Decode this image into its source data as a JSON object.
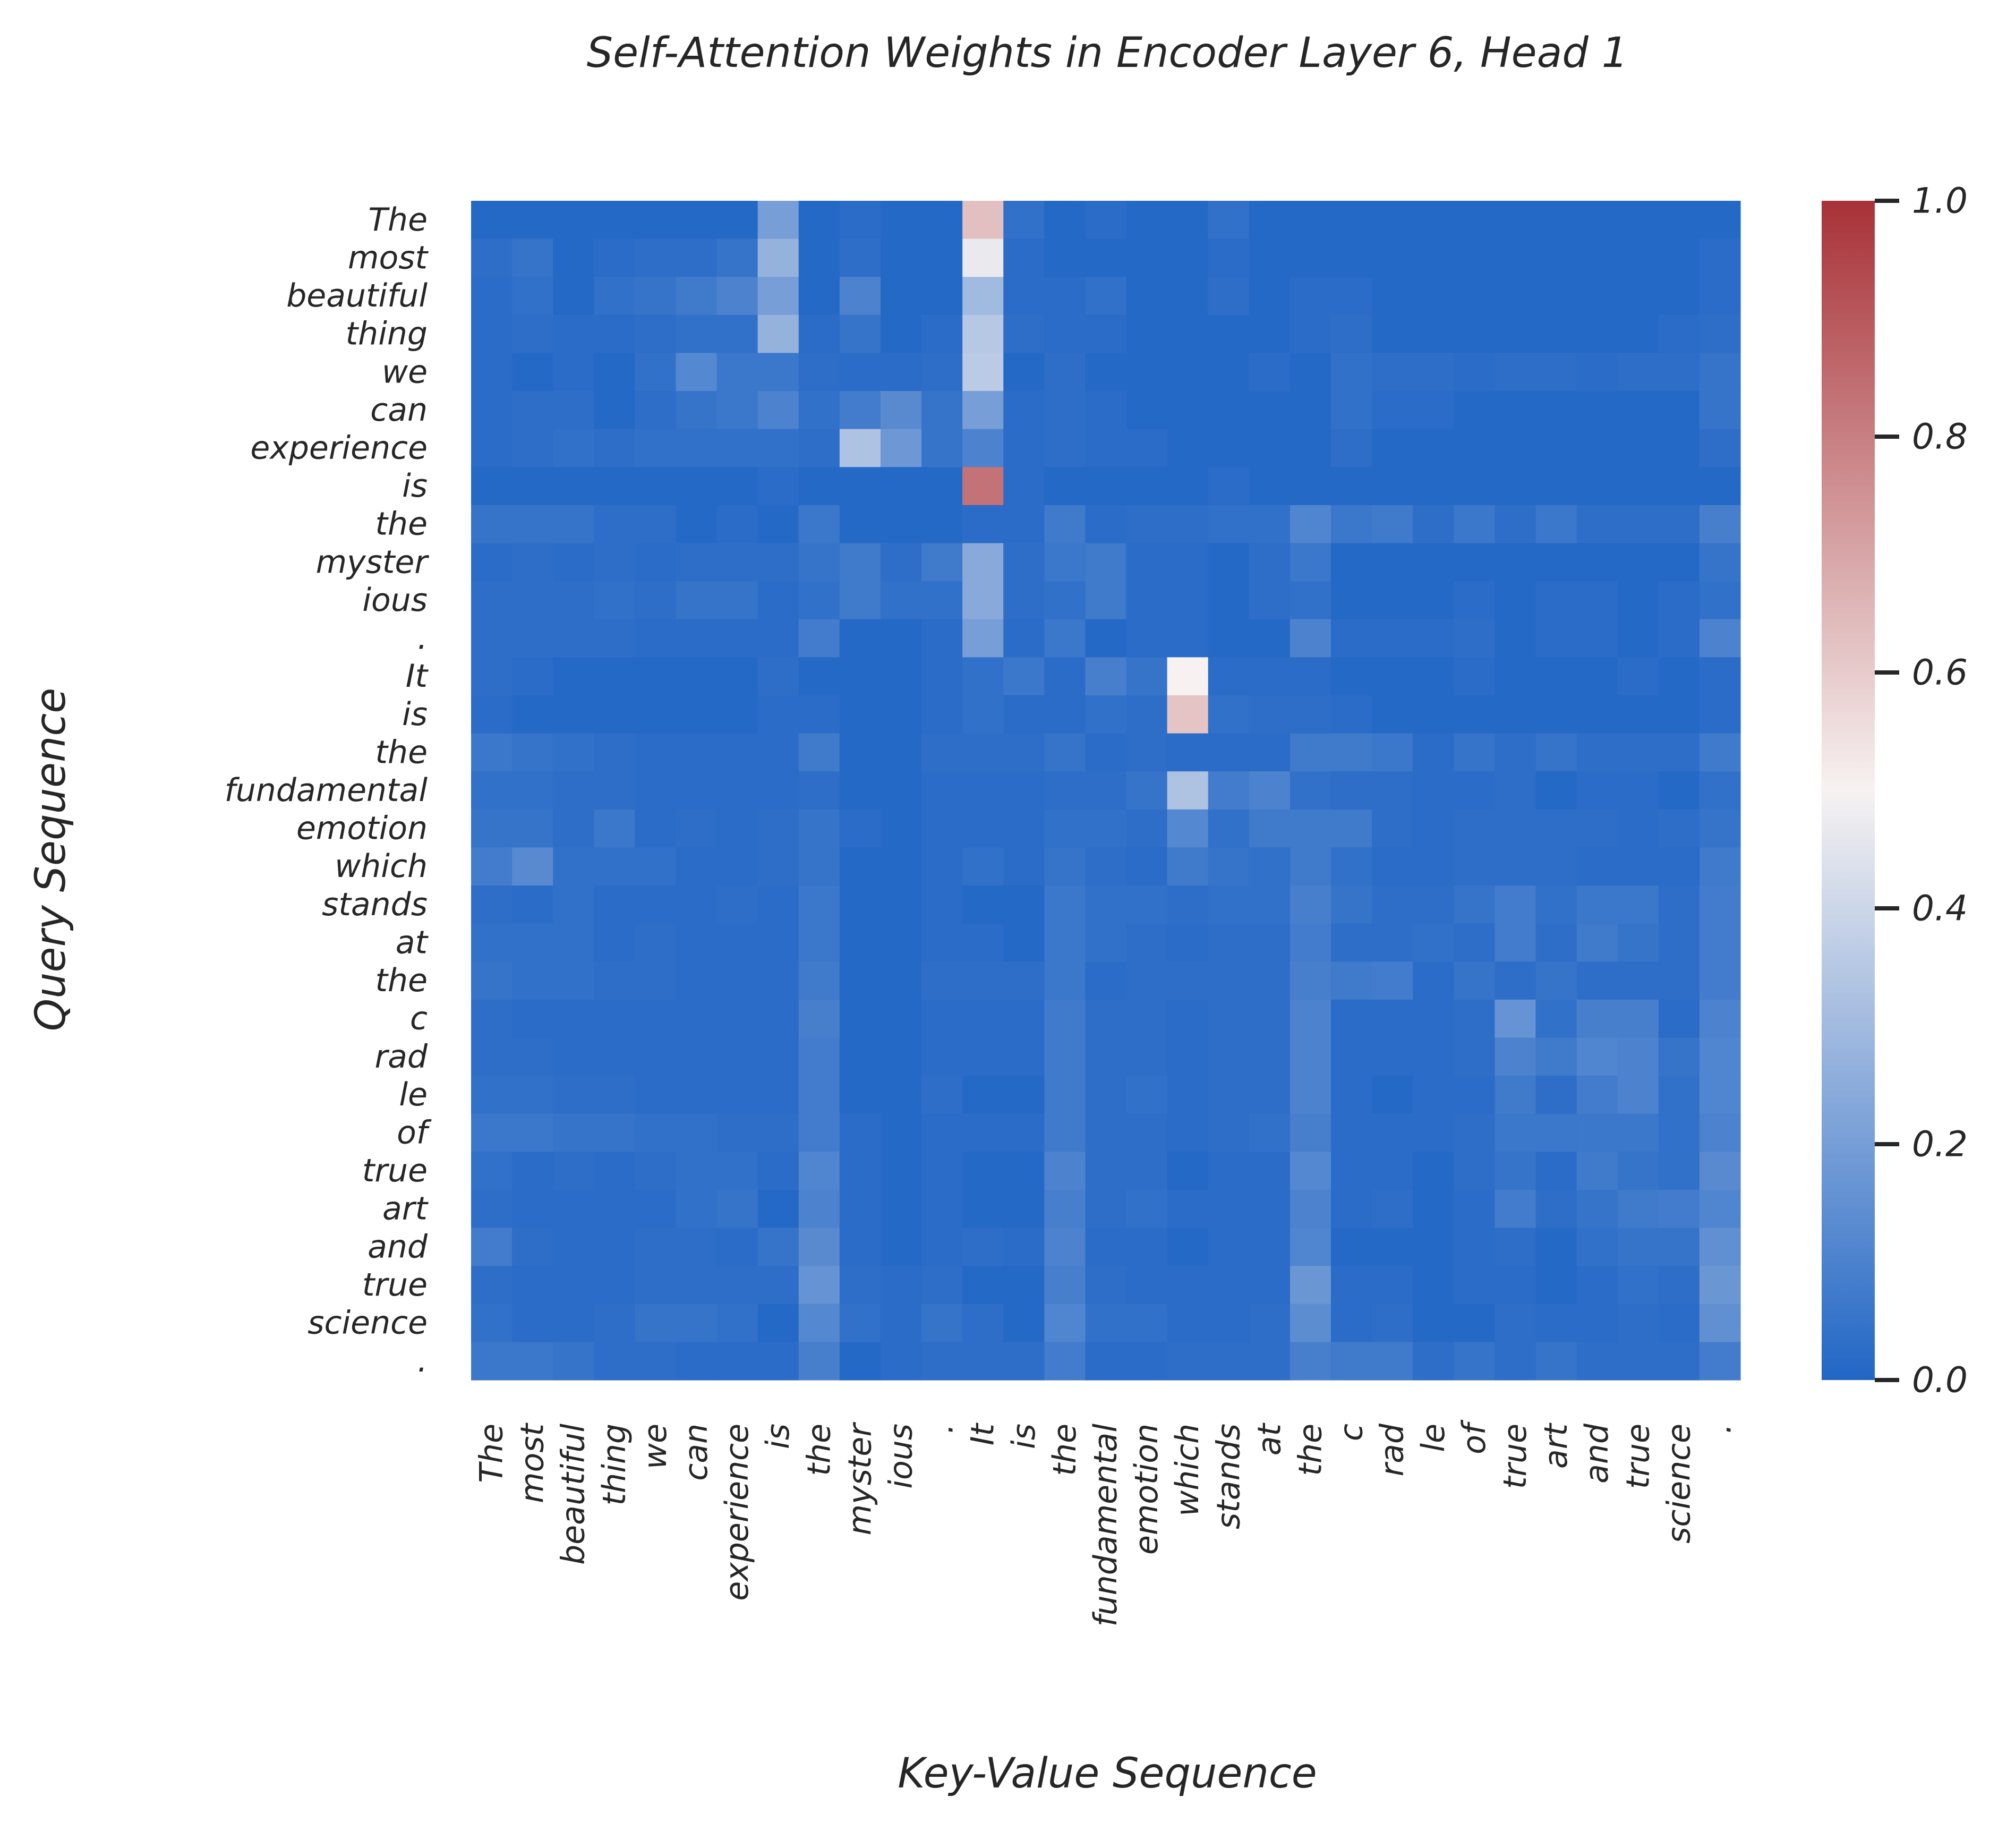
{
  "chart_data": {
    "type": "heatmap",
    "title": "Self-Attention Weights in Encoder Layer 6, Head 1",
    "xlabel": "Key-Value Sequence",
    "ylabel": "Query Sequence",
    "tokens": [
      "The",
      "most",
      "beautiful",
      "thing",
      "we",
      "can",
      "experience",
      "is",
      "the",
      "myster",
      "ious",
      ".",
      "It",
      "is",
      "the",
      "fundamental",
      "emotion",
      "which",
      "stands",
      "at",
      "the",
      "c",
      "rad",
      "le",
      "of",
      "true",
      "art",
      "and",
      "true",
      "science",
      "."
    ],
    "colorbar": {
      "min": 0.0,
      "max": 1.0,
      "ticks": [
        "0.0",
        "0.2",
        "0.4",
        "0.6",
        "0.8",
        "1.0"
      ],
      "colormap": "blue-white-red diverging",
      "colors": [
        "#2166c5",
        "#f7f2f1",
        "#a83238"
      ]
    },
    "values": [
      [
        0.01,
        0.01,
        0.01,
        0.01,
        0.01,
        0.01,
        0.01,
        0.2,
        0.01,
        0.02,
        0.01,
        0.01,
        0.63,
        0.04,
        0.01,
        0.02,
        0.01,
        0.01,
        0.04,
        0.01,
        0.01,
        0.01,
        0.01,
        0.01,
        0.01,
        0.01,
        0.01,
        0.01,
        0.01,
        0.01,
        0.01
      ],
      [
        0.03,
        0.05,
        0.01,
        0.02,
        0.03,
        0.03,
        0.05,
        0.27,
        0.01,
        0.03,
        0.01,
        0.01,
        0.47,
        0.02,
        0.01,
        0.01,
        0.01,
        0.01,
        0.02,
        0.01,
        0.01,
        0.01,
        0.01,
        0.01,
        0.01,
        0.01,
        0.01,
        0.01,
        0.01,
        0.01,
        0.02
      ],
      [
        0.02,
        0.04,
        0.01,
        0.04,
        0.05,
        0.07,
        0.1,
        0.2,
        0.01,
        0.1,
        0.01,
        0.01,
        0.3,
        0.02,
        0.02,
        0.04,
        0.01,
        0.01,
        0.03,
        0.01,
        0.02,
        0.02,
        0.01,
        0.01,
        0.01,
        0.01,
        0.01,
        0.01,
        0.01,
        0.01,
        0.02
      ],
      [
        0.02,
        0.03,
        0.02,
        0.02,
        0.03,
        0.04,
        0.04,
        0.27,
        0.02,
        0.05,
        0.01,
        0.02,
        0.35,
        0.03,
        0.02,
        0.02,
        0.01,
        0.01,
        0.01,
        0.01,
        0.02,
        0.03,
        0.01,
        0.01,
        0.01,
        0.01,
        0.01,
        0.01,
        0.01,
        0.02,
        0.03
      ],
      [
        0.02,
        0.01,
        0.02,
        0.01,
        0.04,
        0.12,
        0.06,
        0.06,
        0.03,
        0.02,
        0.02,
        0.03,
        0.36,
        0.01,
        0.03,
        0.01,
        0.01,
        0.01,
        0.01,
        0.02,
        0.01,
        0.04,
        0.03,
        0.03,
        0.02,
        0.03,
        0.03,
        0.02,
        0.03,
        0.03,
        0.05
      ],
      [
        0.02,
        0.03,
        0.03,
        0.01,
        0.03,
        0.05,
        0.06,
        0.1,
        0.04,
        0.08,
        0.13,
        0.05,
        0.2,
        0.02,
        0.03,
        0.02,
        0.01,
        0.01,
        0.01,
        0.01,
        0.01,
        0.04,
        0.02,
        0.02,
        0.01,
        0.01,
        0.01,
        0.01,
        0.01,
        0.01,
        0.05
      ],
      [
        0.02,
        0.03,
        0.04,
        0.03,
        0.04,
        0.04,
        0.04,
        0.04,
        0.03,
        0.33,
        0.18,
        0.05,
        0.1,
        0.02,
        0.03,
        0.02,
        0.02,
        0.01,
        0.01,
        0.01,
        0.01,
        0.03,
        0.01,
        0.01,
        0.01,
        0.01,
        0.01,
        0.01,
        0.01,
        0.01,
        0.03
      ],
      [
        0.01,
        0.01,
        0.01,
        0.01,
        0.01,
        0.01,
        0.01,
        0.02,
        0.01,
        0.01,
        0.01,
        0.01,
        0.83,
        0.02,
        0.01,
        0.01,
        0.01,
        0.01,
        0.02,
        0.01,
        0.01,
        0.01,
        0.01,
        0.01,
        0.01,
        0.01,
        0.01,
        0.01,
        0.01,
        0.01,
        0.01
      ],
      [
        0.05,
        0.05,
        0.05,
        0.03,
        0.03,
        0.01,
        0.02,
        0.01,
        0.06,
        0.01,
        0.01,
        0.01,
        0.02,
        0.02,
        0.07,
        0.02,
        0.03,
        0.03,
        0.04,
        0.04,
        0.11,
        0.06,
        0.07,
        0.03,
        0.06,
        0.03,
        0.06,
        0.03,
        0.03,
        0.03,
        0.09
      ],
      [
        0.02,
        0.03,
        0.02,
        0.03,
        0.02,
        0.03,
        0.03,
        0.03,
        0.05,
        0.07,
        0.03,
        0.07,
        0.24,
        0.03,
        0.06,
        0.07,
        0.02,
        0.02,
        0.01,
        0.03,
        0.06,
        0.01,
        0.01,
        0.01,
        0.01,
        0.01,
        0.01,
        0.01,
        0.01,
        0.01,
        0.05
      ],
      [
        0.03,
        0.03,
        0.03,
        0.04,
        0.03,
        0.05,
        0.05,
        0.02,
        0.04,
        0.07,
        0.04,
        0.04,
        0.24,
        0.03,
        0.04,
        0.07,
        0.02,
        0.02,
        0.01,
        0.03,
        0.04,
        0.01,
        0.01,
        0.01,
        0.02,
        0.01,
        0.02,
        0.02,
        0.01,
        0.02,
        0.04
      ],
      [
        0.03,
        0.03,
        0.03,
        0.03,
        0.02,
        0.02,
        0.02,
        0.02,
        0.08,
        0.01,
        0.01,
        0.02,
        0.2,
        0.02,
        0.06,
        0.01,
        0.02,
        0.02,
        0.01,
        0.01,
        0.1,
        0.02,
        0.02,
        0.02,
        0.03,
        0.01,
        0.02,
        0.02,
        0.01,
        0.02,
        0.1
      ],
      [
        0.03,
        0.02,
        0.01,
        0.01,
        0.01,
        0.01,
        0.01,
        0.03,
        0.01,
        0.01,
        0.01,
        0.02,
        0.04,
        0.06,
        0.02,
        0.09,
        0.05,
        0.5,
        0.02,
        0.02,
        0.02,
        0.01,
        0.01,
        0.01,
        0.02,
        0.01,
        0.01,
        0.01,
        0.02,
        0.01,
        0.02
      ],
      [
        0.02,
        0.01,
        0.01,
        0.01,
        0.01,
        0.01,
        0.01,
        0.02,
        0.02,
        0.01,
        0.01,
        0.02,
        0.04,
        0.02,
        0.02,
        0.04,
        0.03,
        0.62,
        0.04,
        0.03,
        0.03,
        0.02,
        0.01,
        0.01,
        0.01,
        0.01,
        0.01,
        0.01,
        0.01,
        0.01,
        0.02
      ],
      [
        0.06,
        0.05,
        0.04,
        0.03,
        0.02,
        0.02,
        0.02,
        0.02,
        0.07,
        0.01,
        0.01,
        0.03,
        0.03,
        0.03,
        0.05,
        0.02,
        0.03,
        0.02,
        0.02,
        0.02,
        0.07,
        0.07,
        0.06,
        0.02,
        0.05,
        0.03,
        0.05,
        0.03,
        0.03,
        0.03,
        0.07
      ],
      [
        0.04,
        0.04,
        0.03,
        0.03,
        0.02,
        0.02,
        0.02,
        0.02,
        0.03,
        0.01,
        0.01,
        0.02,
        0.02,
        0.02,
        0.03,
        0.03,
        0.05,
        0.33,
        0.08,
        0.1,
        0.04,
        0.03,
        0.03,
        0.02,
        0.02,
        0.03,
        0.01,
        0.02,
        0.02,
        0.01,
        0.04
      ],
      [
        0.05,
        0.05,
        0.03,
        0.06,
        0.02,
        0.03,
        0.02,
        0.03,
        0.05,
        0.02,
        0.01,
        0.02,
        0.02,
        0.02,
        0.04,
        0.04,
        0.03,
        0.12,
        0.04,
        0.07,
        0.07,
        0.07,
        0.03,
        0.02,
        0.03,
        0.03,
        0.03,
        0.03,
        0.02,
        0.03,
        0.05
      ],
      [
        0.08,
        0.13,
        0.04,
        0.04,
        0.04,
        0.02,
        0.02,
        0.03,
        0.05,
        0.01,
        0.01,
        0.02,
        0.04,
        0.02,
        0.05,
        0.03,
        0.02,
        0.07,
        0.05,
        0.04,
        0.07,
        0.04,
        0.02,
        0.02,
        0.03,
        0.03,
        0.03,
        0.02,
        0.02,
        0.02,
        0.07
      ],
      [
        0.03,
        0.02,
        0.04,
        0.02,
        0.02,
        0.02,
        0.03,
        0.02,
        0.06,
        0.01,
        0.01,
        0.02,
        0.01,
        0.01,
        0.06,
        0.04,
        0.04,
        0.03,
        0.04,
        0.04,
        0.09,
        0.05,
        0.03,
        0.03,
        0.05,
        0.08,
        0.04,
        0.06,
        0.06,
        0.03,
        0.08
      ],
      [
        0.04,
        0.04,
        0.04,
        0.02,
        0.03,
        0.02,
        0.02,
        0.02,
        0.06,
        0.01,
        0.01,
        0.02,
        0.02,
        0.01,
        0.06,
        0.04,
        0.03,
        0.02,
        0.03,
        0.03,
        0.08,
        0.03,
        0.03,
        0.04,
        0.03,
        0.08,
        0.03,
        0.07,
        0.05,
        0.03,
        0.08
      ],
      [
        0.05,
        0.04,
        0.04,
        0.03,
        0.03,
        0.02,
        0.02,
        0.02,
        0.07,
        0.01,
        0.01,
        0.03,
        0.03,
        0.03,
        0.06,
        0.02,
        0.03,
        0.03,
        0.03,
        0.03,
        0.09,
        0.07,
        0.08,
        0.02,
        0.05,
        0.03,
        0.05,
        0.03,
        0.03,
        0.03,
        0.08
      ],
      [
        0.03,
        0.02,
        0.02,
        0.02,
        0.02,
        0.02,
        0.02,
        0.02,
        0.09,
        0.01,
        0.01,
        0.02,
        0.02,
        0.02,
        0.07,
        0.03,
        0.03,
        0.02,
        0.03,
        0.03,
        0.1,
        0.02,
        0.02,
        0.02,
        0.03,
        0.16,
        0.04,
        0.09,
        0.09,
        0.02,
        0.1
      ],
      [
        0.03,
        0.03,
        0.02,
        0.02,
        0.02,
        0.02,
        0.02,
        0.02,
        0.08,
        0.01,
        0.01,
        0.02,
        0.02,
        0.02,
        0.07,
        0.03,
        0.03,
        0.02,
        0.03,
        0.03,
        0.1,
        0.02,
        0.02,
        0.02,
        0.03,
        0.1,
        0.07,
        0.11,
        0.1,
        0.05,
        0.11
      ],
      [
        0.04,
        0.04,
        0.03,
        0.03,
        0.02,
        0.02,
        0.02,
        0.02,
        0.08,
        0.01,
        0.01,
        0.03,
        0.01,
        0.01,
        0.07,
        0.03,
        0.04,
        0.02,
        0.03,
        0.03,
        0.1,
        0.02,
        0.01,
        0.02,
        0.02,
        0.07,
        0.03,
        0.08,
        0.1,
        0.04,
        0.11
      ],
      [
        0.06,
        0.06,
        0.05,
        0.05,
        0.04,
        0.04,
        0.03,
        0.03,
        0.08,
        0.02,
        0.01,
        0.02,
        0.02,
        0.02,
        0.07,
        0.03,
        0.03,
        0.02,
        0.03,
        0.04,
        0.09,
        0.02,
        0.02,
        0.02,
        0.03,
        0.06,
        0.06,
        0.06,
        0.06,
        0.04,
        0.1
      ],
      [
        0.04,
        0.02,
        0.03,
        0.02,
        0.03,
        0.04,
        0.04,
        0.02,
        0.11,
        0.02,
        0.01,
        0.02,
        0.01,
        0.01,
        0.1,
        0.03,
        0.03,
        0.01,
        0.02,
        0.02,
        0.12,
        0.02,
        0.02,
        0.01,
        0.03,
        0.05,
        0.02,
        0.07,
        0.05,
        0.04,
        0.13
      ],
      [
        0.03,
        0.02,
        0.02,
        0.02,
        0.02,
        0.04,
        0.05,
        0.01,
        0.1,
        0.02,
        0.01,
        0.02,
        0.01,
        0.01,
        0.09,
        0.03,
        0.04,
        0.02,
        0.02,
        0.02,
        0.1,
        0.02,
        0.03,
        0.01,
        0.02,
        0.08,
        0.03,
        0.05,
        0.07,
        0.08,
        0.11
      ],
      [
        0.08,
        0.03,
        0.02,
        0.02,
        0.03,
        0.03,
        0.02,
        0.05,
        0.13,
        0.02,
        0.01,
        0.02,
        0.03,
        0.02,
        0.1,
        0.02,
        0.02,
        0.01,
        0.02,
        0.02,
        0.11,
        0.01,
        0.01,
        0.01,
        0.02,
        0.03,
        0.01,
        0.04,
        0.05,
        0.05,
        0.15
      ],
      [
        0.03,
        0.02,
        0.02,
        0.02,
        0.03,
        0.03,
        0.03,
        0.03,
        0.16,
        0.03,
        0.02,
        0.03,
        0.01,
        0.01,
        0.09,
        0.03,
        0.02,
        0.02,
        0.02,
        0.02,
        0.17,
        0.02,
        0.02,
        0.01,
        0.02,
        0.02,
        0.01,
        0.02,
        0.04,
        0.03,
        0.17
      ],
      [
        0.04,
        0.02,
        0.02,
        0.03,
        0.05,
        0.05,
        0.04,
        0.01,
        0.12,
        0.04,
        0.02,
        0.05,
        0.03,
        0.01,
        0.11,
        0.04,
        0.04,
        0.02,
        0.02,
        0.03,
        0.14,
        0.02,
        0.03,
        0.01,
        0.01,
        0.03,
        0.02,
        0.02,
        0.03,
        0.02,
        0.15
      ],
      [
        0.06,
        0.06,
        0.05,
        0.03,
        0.03,
        0.02,
        0.02,
        0.02,
        0.09,
        0.01,
        0.02,
        0.03,
        0.03,
        0.03,
        0.08,
        0.02,
        0.02,
        0.03,
        0.03,
        0.03,
        0.09,
        0.07,
        0.07,
        0.03,
        0.05,
        0.03,
        0.05,
        0.03,
        0.03,
        0.03,
        0.08
      ]
    ]
  }
}
